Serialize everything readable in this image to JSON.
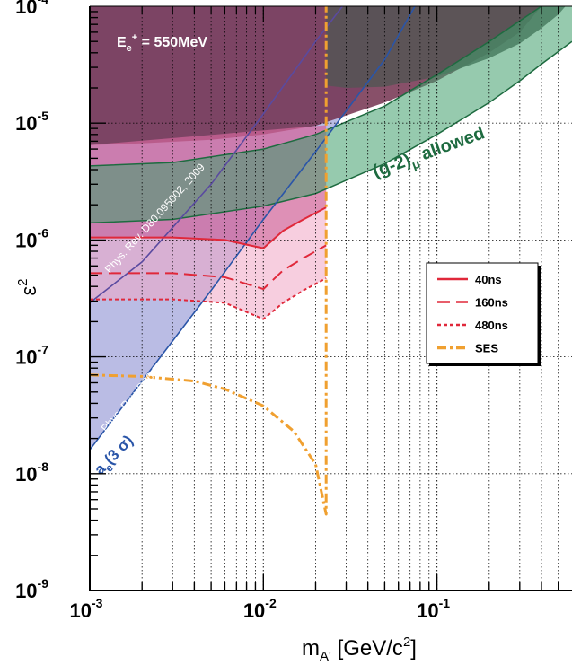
{
  "chart_data": {
    "type": "line",
    "x_scale": "log",
    "y_scale": "log",
    "xlim": [
      0.001,
      0.6
    ],
    "ylim": [
      1e-09,
      0.0001
    ],
    "grid": true,
    "xlabel": {
      "base": "m",
      "sub": "A'",
      "rest": " [GeV/c",
      "sup": "2",
      "end": "]"
    },
    "ylabel": {
      "base": "ε",
      "sup": "2"
    },
    "x_ticks": [
      {
        "value": 0.001,
        "base": "10",
        "exp": "-3"
      },
      {
        "value": 0.01,
        "base": "10",
        "exp": "-2"
      },
      {
        "value": 0.1,
        "base": "10",
        "exp": "-1"
      }
    ],
    "y_ticks": [
      {
        "value": 1e-09,
        "base": "10",
        "exp": "-9"
      },
      {
        "value": 1e-08,
        "base": "10",
        "exp": "-8"
      },
      {
        "value": 1e-07,
        "base": "10",
        "exp": "-7"
      },
      {
        "value": 1e-06,
        "base": "10",
        "exp": "-6"
      },
      {
        "value": 1e-05,
        "base": "10",
        "exp": "-5"
      },
      {
        "value": 0.0001,
        "base": "10",
        "exp": "-4"
      }
    ],
    "energy_label": {
      "base": "E",
      "sub": "e",
      "supmark": "+",
      "rest": " = 550MeV"
    },
    "regions": {
      "beam_dump": {
        "color": "#6e2a48",
        "opacity": 0.82,
        "lower": [
          [
            0.001,
            6.5e-06
          ],
          [
            0.002,
            6.7e-06
          ],
          [
            0.005,
            7.2e-06
          ],
          [
            0.01,
            8e-06
          ],
          [
            0.02,
            9.5e-06
          ],
          [
            0.05,
            1.5e-05
          ],
          [
            0.1,
            2.3e-05
          ],
          [
            0.2,
            4e-05
          ],
          [
            0.3,
            6e-05
          ],
          [
            0.4,
            0.0001
          ]
        ]
      },
      "dark_band": {
        "color": "#555555",
        "opacity": 0.85,
        "lower": [
          [
            0.023,
            2.1e-05
          ],
          [
            0.03,
            2e-05
          ],
          [
            0.05,
            2.05e-05
          ],
          [
            0.1,
            2.5e-05
          ],
          [
            0.2,
            3.6e-05
          ],
          [
            0.3,
            4.8e-05
          ],
          [
            0.4,
            6.5e-05
          ],
          [
            0.5,
            8.5e-05
          ],
          [
            0.55,
            0.0001
          ]
        ]
      },
      "pink_region": {
        "color": "#d1659a",
        "opacity": 0.72,
        "lower": [
          [
            0.001,
            1.05e-06
          ],
          [
            0.003,
            1.05e-06
          ],
          [
            0.006,
            1e-06
          ],
          [
            0.01,
            8.5e-07
          ],
          [
            0.013,
            1.2e-06
          ],
          [
            0.017,
            1.5e-06
          ],
          [
            0.023,
            1.9e-06
          ]
        ]
      },
      "blue_region": {
        "color": "#8f93d4",
        "opacity": 0.62
      },
      "g2_band": {
        "color": "#3f9e6c",
        "opacity": 0.55,
        "edge": "#1e6b40",
        "upper": [
          [
            0.001,
            4.3e-06
          ],
          [
            0.003,
            4.6e-06
          ],
          [
            0.01,
            6e-06
          ],
          [
            0.02,
            8e-06
          ],
          [
            0.05,
            1.4e-05
          ],
          [
            0.1,
            2.6e-05
          ],
          [
            0.2,
            5e-05
          ],
          [
            0.3,
            7.5e-05
          ],
          [
            0.4,
            0.0001
          ],
          [
            0.6,
            0.00016
          ]
        ],
        "lower": [
          [
            0.001,
            1.4e-06
          ],
          [
            0.003,
            1.5e-06
          ],
          [
            0.01,
            1.95e-06
          ],
          [
            0.02,
            2.5e-06
          ],
          [
            0.05,
            4.5e-06
          ],
          [
            0.1,
            8e-06
          ],
          [
            0.2,
            1.5e-05
          ],
          [
            0.3,
            2.3e-05
          ],
          [
            0.4,
            3.2e-05
          ],
          [
            0.6,
            5e-05
          ]
        ]
      }
    },
    "exclusion_lines": [
      {
        "name": "phys_rev_d80",
        "color": "#5a4aa0",
        "points": [
          [
            0.001,
            2.9e-07
          ],
          [
            0.002,
            6.5e-07
          ],
          [
            0.005,
            3e-06
          ],
          [
            0.01,
            1.2e-05
          ],
          [
            0.02,
            5e-05
          ],
          [
            0.03,
            0.00011
          ]
        ]
      },
      {
        "name": "ae_3sigma",
        "color": "#2a55a8",
        "points": [
          [
            0.001,
            1.6e-08
          ],
          [
            0.002,
            6.2e-08
          ],
          [
            0.005,
            3.7e-07
          ],
          [
            0.01,
            1.5e-06
          ],
          [
            0.02,
            5.7e-06
          ],
          [
            0.05,
            3.5e-05
          ],
          [
            0.08,
            0.00012
          ]
        ]
      }
    ],
    "series": [
      {
        "name": "40ns",
        "color": "#e0283a",
        "dash": "",
        "width": 2,
        "points": [
          [
            0.001,
            1.05e-06
          ],
          [
            0.003,
            1.05e-06
          ],
          [
            0.006,
            1e-06
          ],
          [
            0.01,
            8.5e-07
          ],
          [
            0.013,
            1.2e-06
          ],
          [
            0.017,
            1.5e-06
          ],
          [
            0.023,
            1.9e-06
          ]
        ]
      },
      {
        "name": "160ns",
        "color": "#e0283a",
        "dash": "14,7",
        "width": 2,
        "points": [
          [
            0.001,
            5.2e-07
          ],
          [
            0.003,
            5.2e-07
          ],
          [
            0.006,
            4.8e-07
          ],
          [
            0.01,
            3.8e-07
          ],
          [
            0.013,
            5.5e-07
          ],
          [
            0.017,
            7e-07
          ],
          [
            0.023,
            9e-07
          ]
        ]
      },
      {
        "name": "480ns",
        "color": "#e0283a",
        "dash": "4,3",
        "width": 2,
        "points": [
          [
            0.001,
            3.1e-07
          ],
          [
            0.003,
            3.1e-07
          ],
          [
            0.006,
            2.9e-07
          ],
          [
            0.01,
            2.1e-07
          ],
          [
            0.013,
            2.9e-07
          ],
          [
            0.017,
            3.7e-07
          ],
          [
            0.023,
            4.7e-07
          ]
        ]
      },
      {
        "name": "SES",
        "color": "#f0a030",
        "dash": "10,4,3,4",
        "width": 3,
        "points": [
          [
            0.001,
            7e-08
          ],
          [
            0.002,
            6.8e-08
          ],
          [
            0.004,
            6.2e-08
          ],
          [
            0.006,
            5.3e-08
          ],
          [
            0.01,
            3.8e-08
          ],
          [
            0.015,
            2.3e-08
          ],
          [
            0.02,
            1.2e-08
          ],
          [
            0.023,
            4.5e-09
          ],
          [
            0.023,
            0.0001
          ]
        ]
      }
    ],
    "legend": {
      "position": "right",
      "entries": [
        {
          "label": "40ns",
          "series": 0
        },
        {
          "label": "160ns",
          "series": 1
        },
        {
          "label": "480ns",
          "series": 2
        },
        {
          "label": "SES",
          "series": 3
        }
      ]
    },
    "annotations": {
      "g2_label": {
        "text_a": "(g-2)",
        "sub": "μ",
        "text_b": " allowed",
        "color": "#1e6b40"
      },
      "ref_d80": {
        "text": "Phys. Rev. D80:095002, 2009",
        "color": "#ffffff"
      },
      "ref_d86": {
        "text": "Phys. Rev. D86:095029, 2012",
        "color": "#ffffff"
      },
      "ae_label": {
        "text_a": "a",
        "sub": "e",
        "text_b": "(3 σ)",
        "color": "#2a55a8"
      }
    }
  }
}
